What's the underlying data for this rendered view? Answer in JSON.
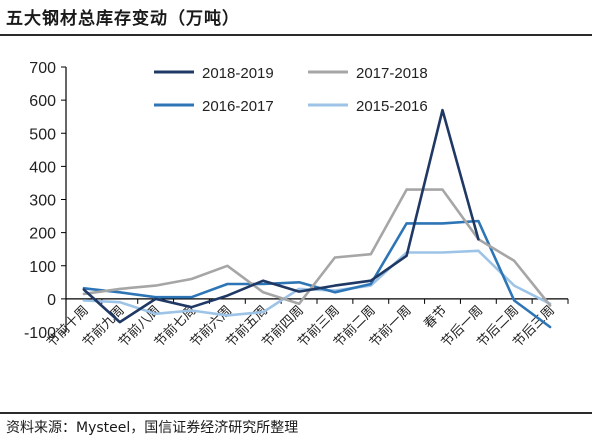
{
  "title": "五大钢材总库存变动（万吨）",
  "source": "资料来源：Mysteel，国信证券经济研究所整理",
  "chart_data": {
    "type": "line",
    "categories": [
      "节前十周",
      "节前九周",
      "节前八周",
      "节前七周",
      "节前六周",
      "节前五周",
      "节前四周",
      "节前三周",
      "节前二周",
      "节前一周",
      "春节",
      "节后一周",
      "节后二周",
      "节后三周"
    ],
    "ylim": [
      -100,
      700
    ],
    "yticks": [
      -100,
      0,
      100,
      200,
      300,
      400,
      500,
      600,
      700
    ],
    "legend": "top, two columns",
    "series": [
      {
        "name": "2018-2019",
        "color": "#1f3864",
        "values": [
          28,
          -70,
          0,
          -25,
          10,
          55,
          22,
          40,
          55,
          130,
          570,
          180,
          null,
          null
        ]
      },
      {
        "name": "2017-2018",
        "color": "#a6a6a6",
        "values": [
          15,
          30,
          40,
          60,
          100,
          20,
          -15,
          125,
          135,
          330,
          330,
          180,
          115,
          -20
        ]
      },
      {
        "name": "2016-2017",
        "color": "#2e75b6",
        "values": [
          32,
          20,
          5,
          5,
          45,
          45,
          50,
          20,
          45,
          228,
          228,
          235,
          -5,
          -85
        ]
      },
      {
        "name": "2015-2016",
        "color": "#9dc3e6",
        "values": [
          -5,
          -10,
          -45,
          -35,
          -50,
          -40,
          30,
          25,
          40,
          140,
          140,
          145,
          40,
          -15
        ]
      }
    ]
  }
}
